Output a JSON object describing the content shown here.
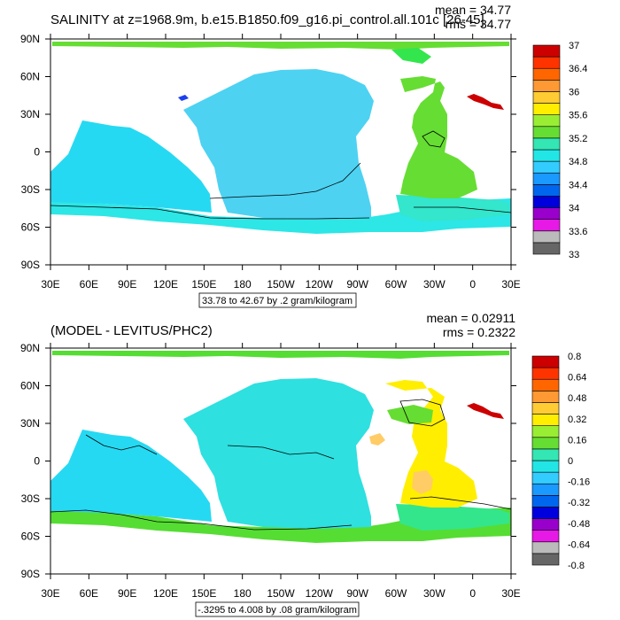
{
  "chart_data": [
    {
      "type": "heatmap",
      "title": "SALINITY at z=1968.9m, b.e15.B1850.f09_g16.pi_control.all.101c [26-45]",
      "stats": {
        "mean": "mean = 34.77",
        "rms": "rms = 34.77"
      },
      "x_ticks": [
        "30E",
        "60E",
        "90E",
        "120E",
        "150E",
        "180",
        "150W",
        "120W",
        "90W",
        "60W",
        "30W",
        "0",
        "30E"
      ],
      "y_ticks": [
        "90N",
        "60N",
        "30N",
        "0",
        "30S",
        "60S",
        "90S"
      ],
      "xlim": [
        30,
        390
      ],
      "ylim": [
        -90,
        90
      ],
      "subtitle": "33.78 to 42.67 by .2 gram/kilogram",
      "colorbar": {
        "colors": [
          "#666666",
          "#bbbbbb",
          "#e619e6",
          "#9900cc",
          "#0000dd",
          "#0066ee",
          "#1a99ff",
          "#33ccff",
          "#22e6e6",
          "#33e6b3",
          "#66dd33",
          "#99ee33",
          "#ffee00",
          "#ffcc33",
          "#ff9933",
          "#ff6600",
          "#ff3300",
          "#cc0000"
        ],
        "labels": [
          "33",
          "33.6",
          "34",
          "34.4",
          "34.8",
          "35.2",
          "35.6",
          "36",
          "36.4",
          "37"
        ]
      },
      "ocean_fills": {
        "pacific": "#4dd2f2",
        "indian": "#26d9f2",
        "southern": "#2de6e6",
        "southern_core": "#33e6cc",
        "atlantic": "#66dd33",
        "arctic": "#66dd33",
        "north_atlantic": "#33e64d",
        "mediterranean": "#cc0000",
        "okhotsk_spot": "#1a40ee"
      }
    },
    {
      "type": "heatmap",
      "title": "(MODEL - LEVITUS/PHC2)",
      "stats": {
        "mean": "mean = 0.02911",
        "rms": "rms = 0.2322"
      },
      "x_ticks": [
        "30E",
        "60E",
        "90E",
        "120E",
        "150E",
        "180",
        "150W",
        "120W",
        "90W",
        "60W",
        "30W",
        "0",
        "30E"
      ],
      "y_ticks": [
        "90N",
        "60N",
        "30N",
        "0",
        "30S",
        "60S",
        "90S"
      ],
      "xlim": [
        30,
        390
      ],
      "ylim": [
        -90,
        90
      ],
      "subtitle": "-.3295 to 4.008 by .08 gram/kilogram",
      "colorbar": {
        "colors": [
          "#666666",
          "#bbbbbb",
          "#e619e6",
          "#9900cc",
          "#0000dd",
          "#0066ee",
          "#1a99ff",
          "#33ccff",
          "#22e6e6",
          "#33e6b3",
          "#66dd33",
          "#99ee33",
          "#ffee00",
          "#ffcc33",
          "#ff9933",
          "#ff6600",
          "#ff3300",
          "#cc0000"
        ],
        "labels": [
          "-0.8",
          "-0.64",
          "-0.48",
          "-0.32",
          "-0.16",
          "0",
          "0.16",
          "0.32",
          "0.48",
          "0.64",
          "0.8"
        ]
      },
      "ocean_fills": {
        "pacific": "#2ee0e0",
        "indian": "#26d9f2",
        "southern": "#55dd33",
        "southern_core": "#33e68c",
        "atlantic": "#ffee00",
        "arctic": "#55dd33",
        "north_atlantic": "#66dd33",
        "mediterranean": "#cc0000",
        "anomaly_patch": "#ffcc66"
      }
    }
  ]
}
